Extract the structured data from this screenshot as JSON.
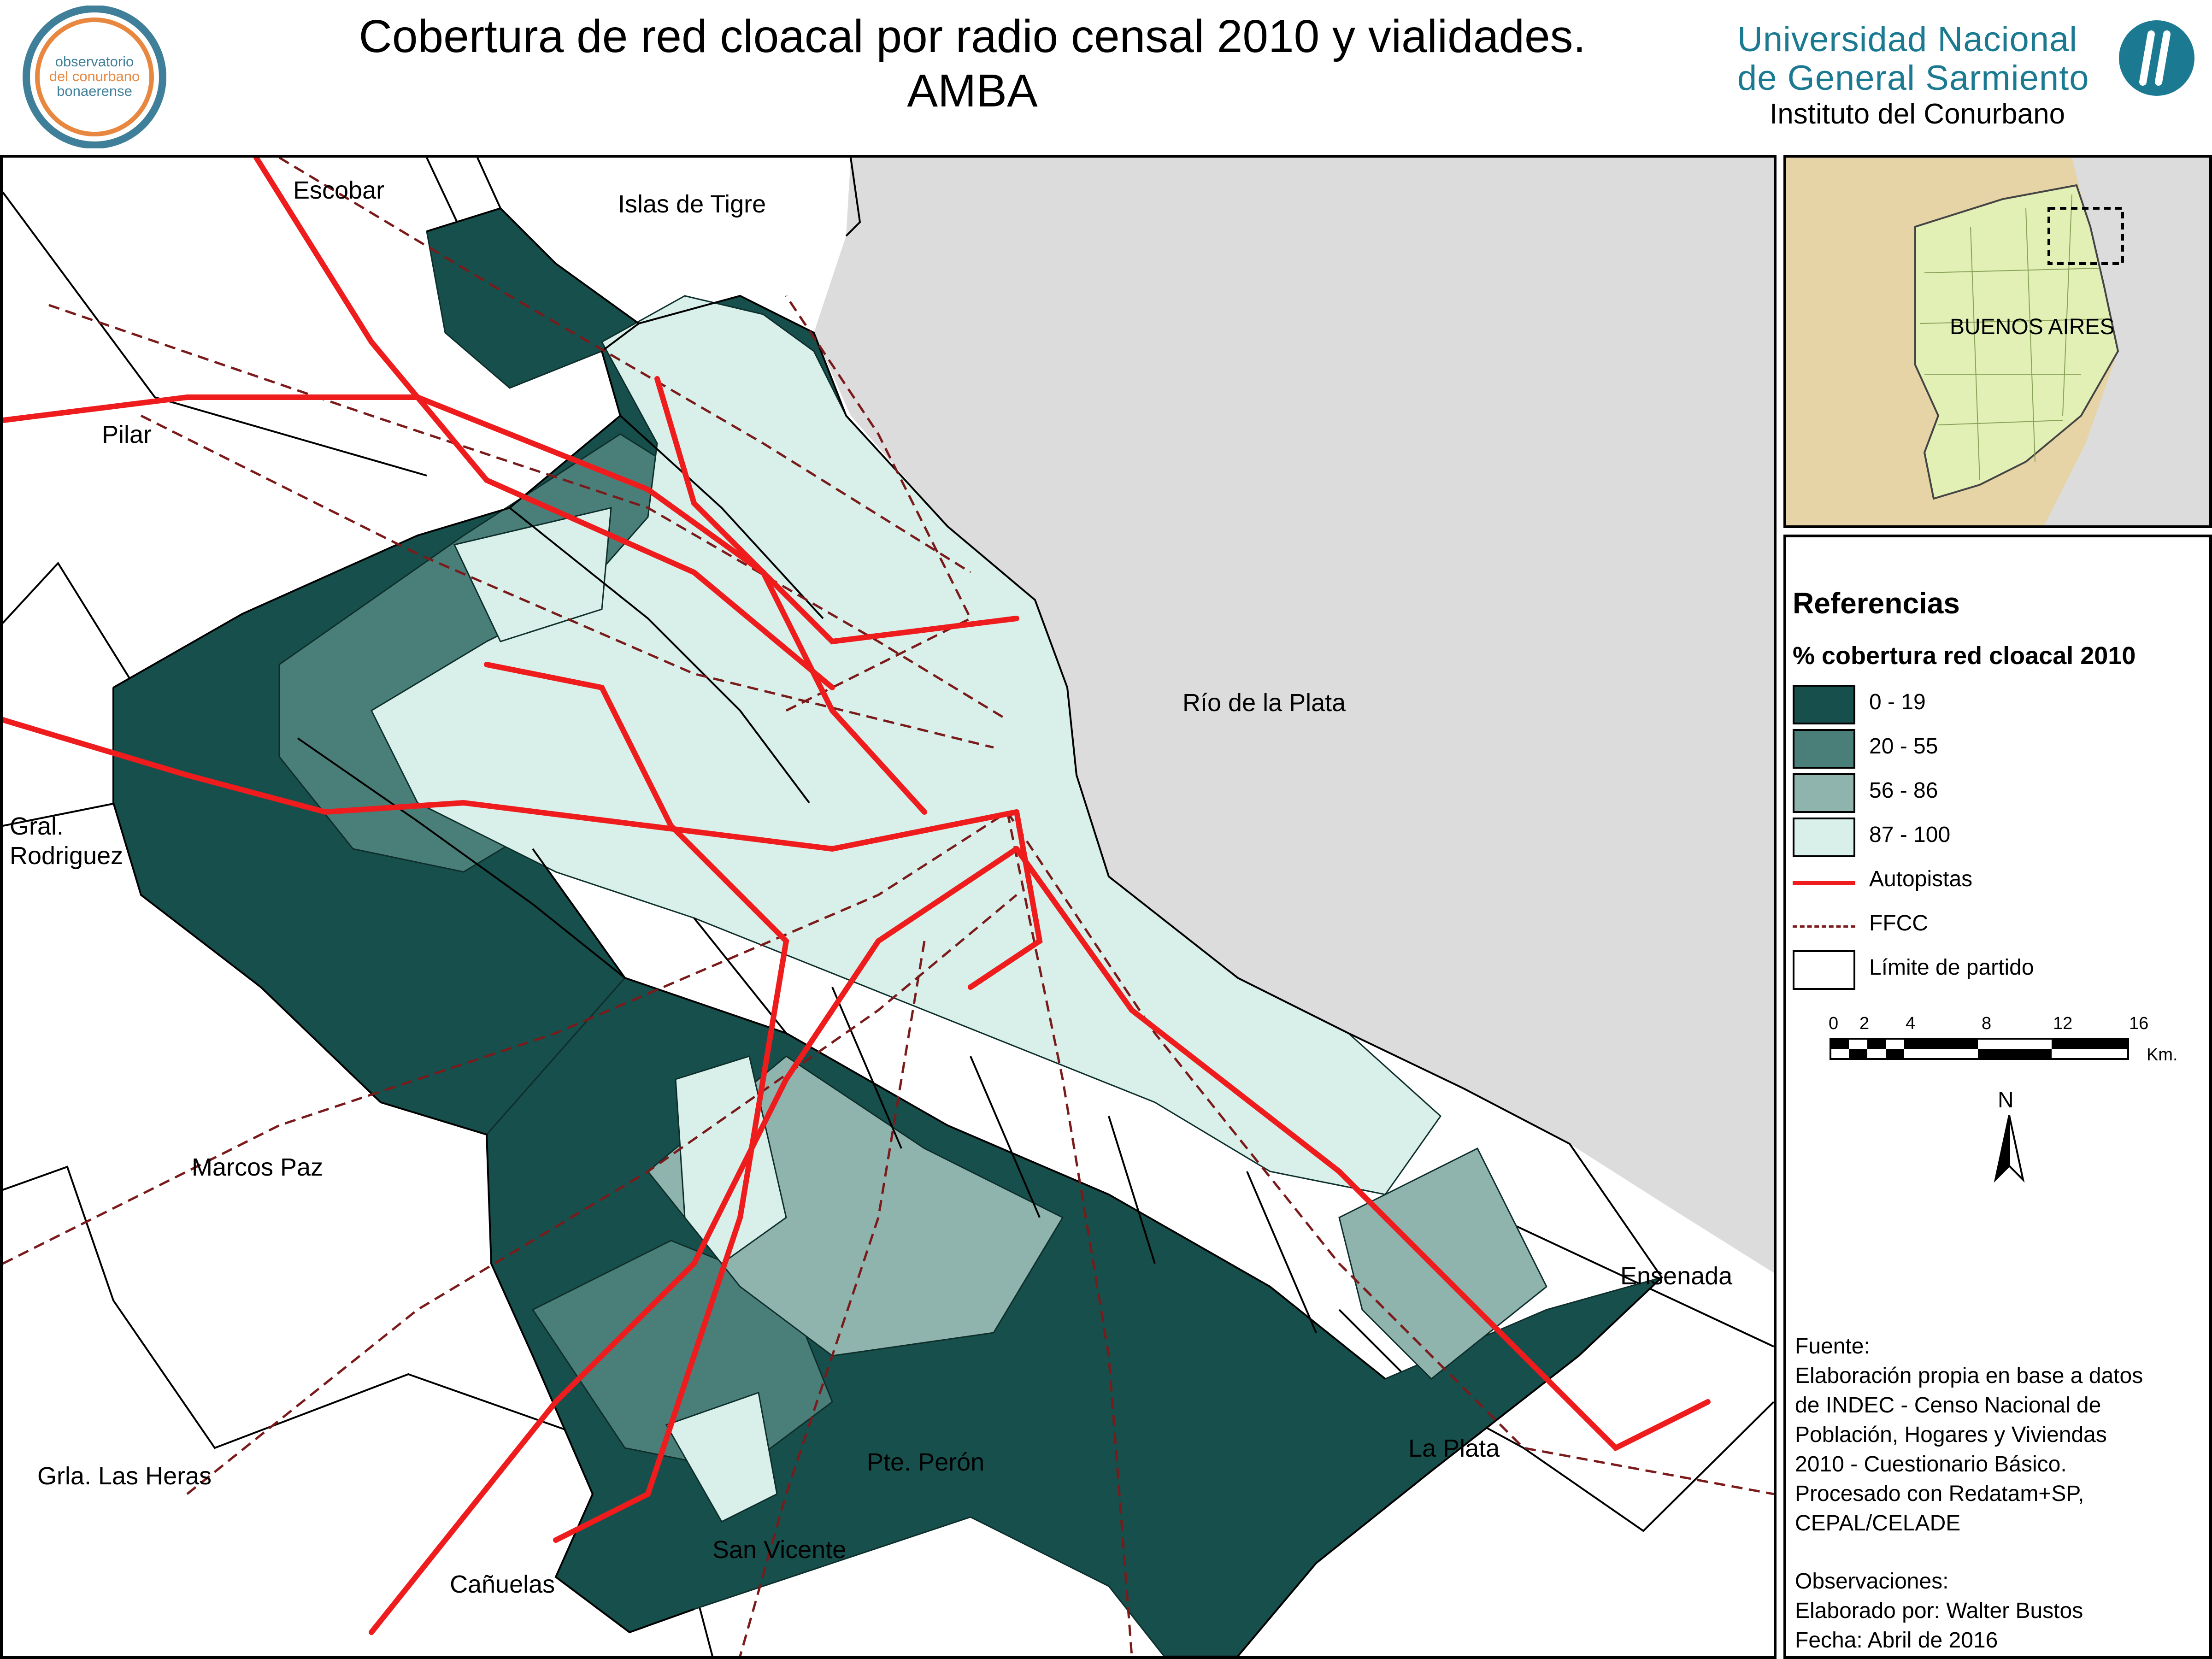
{
  "header": {
    "title_line1": "Cobertura de red cloacal por radio censal 2010 y vialidades.",
    "title_line2": "AMBA",
    "logo_left_text": [
      "observatorio",
      "del conurbano",
      "bonaerense"
    ],
    "university_line1": "Universidad Nacional",
    "university_line2": "de General Sarmiento",
    "institute": "Instituto del Conurbano"
  },
  "map": {
    "place_labels": {
      "escobar": "Escobar",
      "islas": "Islas de Tigre",
      "pilar": "Pilar",
      "rio": "Río de la Plata",
      "rodriguez_1": "Gral.",
      "rodriguez_2": "Rodriguez",
      "marcos_paz": "Marcos Paz",
      "ensenada": "Ensenada",
      "las_heras": "Grla. Las Heras",
      "peron": "Pte. Perón",
      "la_plata": "La Plata",
      "san_vicente": "San Vicente",
      "canuelas": "Cañuelas"
    },
    "inset_label": "BUENOS AIRES",
    "colors": {
      "water": "#dcdcdd",
      "land": "#ffffff",
      "highway": "#ee1c1c",
      "railway": "#7a1a1a",
      "province": "#e2efb5",
      "neighbor": "#e6d4a6"
    }
  },
  "legend": {
    "title": "Referencias",
    "subtitle": "% cobertura red cloacal 2010",
    "classes": [
      {
        "label": "0 - 19",
        "color": "#164f4b"
      },
      {
        "label": "20 - 55",
        "color": "#4a7f79"
      },
      {
        "label": "56 - 86",
        "color": "#8fb4ae"
      },
      {
        "label": "87 - 100",
        "color": "#d9f0ea"
      }
    ],
    "autopistas": "Autopistas",
    "ffcc": "FFCC",
    "limite": "Límite de partido"
  },
  "scalebar": {
    "ticks": [
      "0",
      "2",
      "4",
      "8",
      "12",
      "16"
    ],
    "unit": "Km."
  },
  "north": "N",
  "source": {
    "lines": [
      "Fuente:",
      "Elaboración propia en base a datos",
      "de INDEC - Censo Nacional de",
      "Población, Hogares y Viviendas",
      "2010 - Cuestionario Básico.",
      "Procesado con Redatam+SP,",
      "CEPAL/CELADE",
      "",
      "Observaciones:",
      "Elaborado por: Walter Bustos",
      "Fecha: Abril de 2016"
    ]
  }
}
